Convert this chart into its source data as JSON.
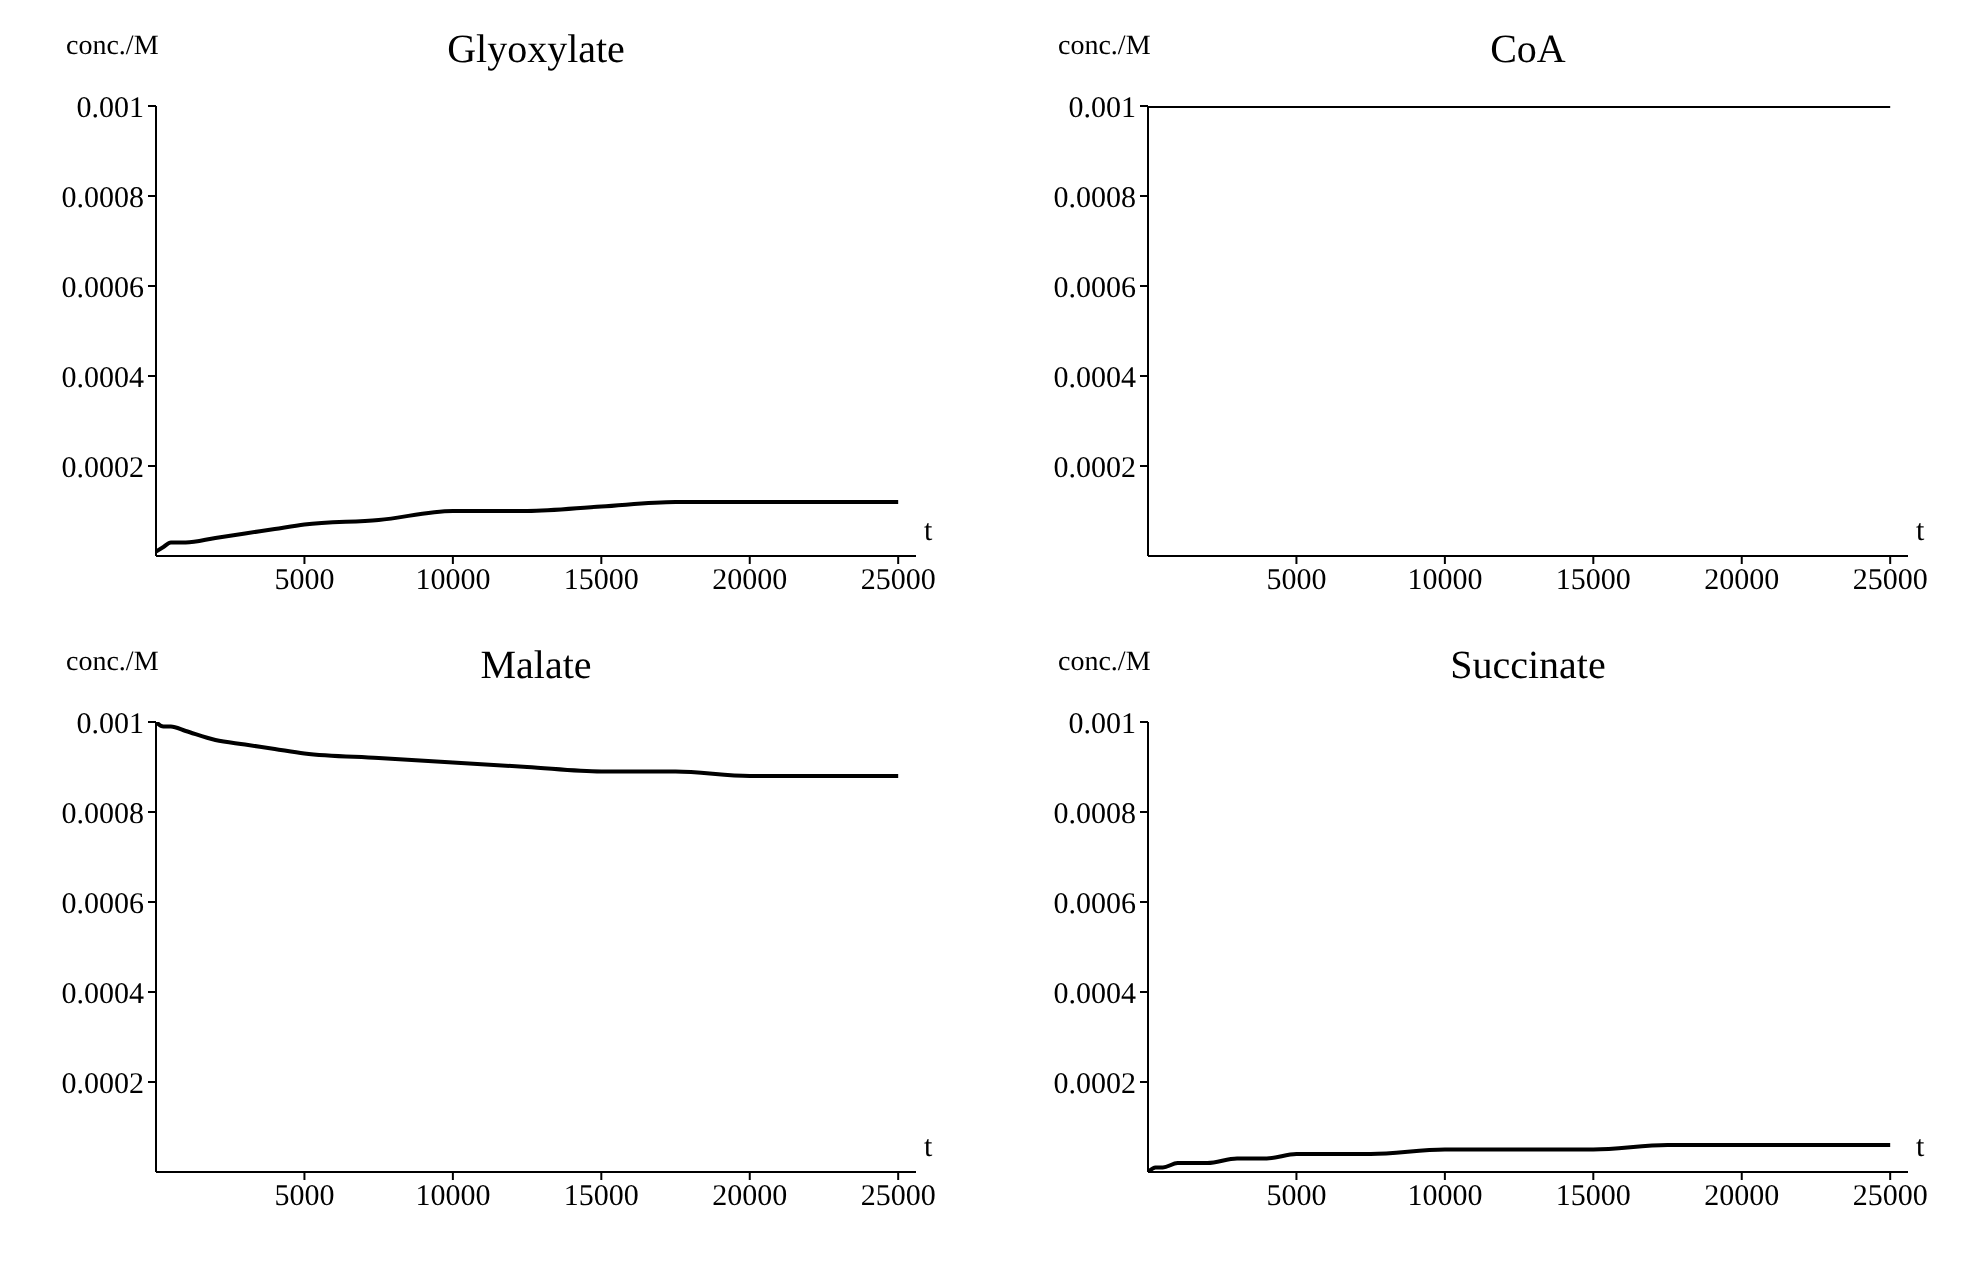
{
  "chart_data": [
    {
      "type": "line",
      "title": "Glyoxylate",
      "xlabel": "t",
      "ylabel": "conc./M",
      "xlim": [
        0,
        25600
      ],
      "ylim": [
        0,
        0.001
      ],
      "xticks": [
        5000,
        10000,
        15000,
        20000,
        25000
      ],
      "yticks": [
        0.0002,
        0.0004,
        0.0006,
        0.0008,
        0.001
      ],
      "x": [
        0,
        250,
        500,
        1000,
        2000,
        3000,
        4000,
        5000,
        7500,
        10000,
        12500,
        15000,
        17500,
        20000,
        22500,
        25000
      ],
      "series": [
        {
          "color": "#000000",
          "values": [
            1e-05,
            2e-05,
            3e-05,
            3e-05,
            4e-05,
            5e-05,
            6e-05,
            7e-05,
            8e-05,
            0.0001,
            0.0001,
            0.00011,
            0.00012,
            0.00012,
            0.00012,
            0.00012
          ]
        }
      ]
    },
    {
      "type": "line",
      "title": "CoA",
      "xlabel": "t",
      "ylabel": "conc./M",
      "xlim": [
        0,
        25600
      ],
      "ylim": [
        0,
        0.001
      ],
      "xticks": [
        5000,
        10000,
        15000,
        20000,
        25000
      ],
      "yticks": [
        0.0002,
        0.0004,
        0.0006,
        0.0008,
        0.001
      ],
      "x": [
        0,
        5000,
        10000,
        15000,
        20000,
        25000
      ],
      "series": [
        {
          "color": "#000000",
          "values": [
            0.001,
            0.001,
            0.001,
            0.001,
            0.001,
            0.001
          ]
        }
      ]
    },
    {
      "type": "line",
      "title": "Malate",
      "xlabel": "t",
      "ylabel": "conc./M",
      "xlim": [
        0,
        25600
      ],
      "ylim": [
        0,
        0.001
      ],
      "xticks": [
        5000,
        10000,
        15000,
        20000,
        25000
      ],
      "yticks": [
        0.0002,
        0.0004,
        0.0006,
        0.0008,
        0.001
      ],
      "x": [
        0,
        250,
        500,
        1000,
        2000,
        3000,
        4000,
        5000,
        7500,
        10000,
        12500,
        15000,
        17500,
        20000,
        22500,
        25000
      ],
      "series": [
        {
          "color": "#000000",
          "values": [
            0.001,
            0.00099,
            0.00099,
            0.00098,
            0.00096,
            0.00095,
            0.00094,
            0.00093,
            0.00092,
            0.00091,
            0.0009,
            0.00089,
            0.00089,
            0.00088,
            0.00088,
            0.00088
          ]
        }
      ]
    },
    {
      "type": "line",
      "title": "Succinate",
      "xlabel": "t",
      "ylabel": "conc./M",
      "xlim": [
        0,
        25600
      ],
      "ylim": [
        0,
        0.001
      ],
      "xticks": [
        5000,
        10000,
        15000,
        20000,
        25000
      ],
      "yticks": [
        0.0002,
        0.0004,
        0.0006,
        0.0008,
        0.001
      ],
      "x": [
        0,
        250,
        500,
        1000,
        2000,
        3000,
        4000,
        5000,
        7500,
        10000,
        12500,
        15000,
        17500,
        20000,
        22500,
        25000
      ],
      "series": [
        {
          "color": "#000000",
          "values": [
            0,
            1e-05,
            1e-05,
            2e-05,
            2e-05,
            3e-05,
            3e-05,
            4e-05,
            4e-05,
            5e-05,
            5e-05,
            5e-05,
            6e-05,
            6e-05,
            6e-05,
            6e-05
          ]
        }
      ]
    }
  ]
}
